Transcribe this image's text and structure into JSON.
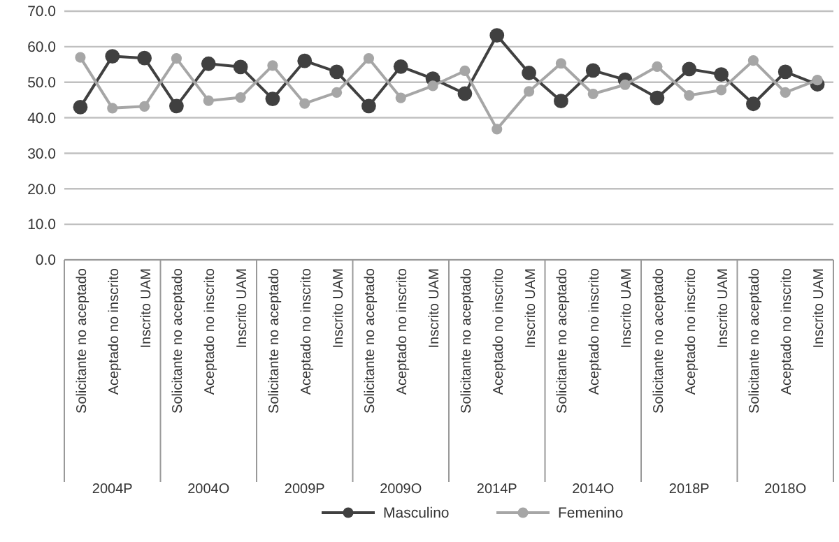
{
  "chart_data": {
    "type": "line",
    "categories": [
      "Solicitante no aceptado",
      "Aceptado no inscrito",
      "Inscrito UAM",
      "Solicitante no aceptado",
      "Aceptado no inscrito",
      "Inscrito UAM",
      "Solicitante no aceptado",
      "Aceptado no inscrito",
      "Inscrito UAM",
      "Solicitante no aceptado",
      "Aceptado no inscrito",
      "Inscrito UAM",
      "Solicitante no aceptado",
      "Aceptado no inscrito",
      "Inscrito UAM",
      "Solicitante no aceptado",
      "Aceptado no inscrito",
      "Inscrito UAM",
      "Solicitante no aceptado",
      "Aceptado no inscrito",
      "Inscrito UAM",
      "Solicitante no aceptado",
      "Aceptado no inscrito",
      "Inscrito UAM"
    ],
    "annotations": [
      "2004P",
      "2004O",
      "2009P",
      "2009O",
      "2014P",
      "2014O",
      "2018P",
      "2018O"
    ],
    "series": [
      {
        "name": "Masculino",
        "color": "#404040",
        "values": [
          43,
          57.3,
          56.8,
          43.3,
          55.2,
          54.3,
          45.3,
          56,
          52.9,
          43.3,
          54.4,
          51,
          46.8,
          63.2,
          52.6,
          44.7,
          53.3,
          50.7,
          45.6,
          53.7,
          52.2,
          43.9,
          52.9,
          49.4
        ]
      },
      {
        "name": "Femenino",
        "color": "#a6a6a6",
        "values": [
          57,
          42.7,
          43.2,
          56.7,
          44.8,
          45.7,
          54.7,
          44,
          47.1,
          56.7,
          45.6,
          49,
          53.2,
          36.8,
          47.4,
          55.3,
          46.7,
          49.3,
          54.4,
          46.3,
          47.8,
          56.1,
          47.1,
          50.6
        ]
      }
    ],
    "ylim": [
      0,
      70
    ],
    "yticks": [
      {
        "value": 0,
        "label": "0.0"
      },
      {
        "value": 10,
        "label": "10.0"
      },
      {
        "value": 20,
        "label": "20.0"
      },
      {
        "value": 30,
        "label": "30.0"
      },
      {
        "value": 40,
        "label": "40.0"
      },
      {
        "value": 50,
        "label": "50.0"
      },
      {
        "value": 60,
        "label": "60.0"
      },
      {
        "value": 70,
        "label": "70.0"
      }
    ],
    "grid": "y",
    "legend": "bottom",
    "marker": "circle",
    "line_style": "solid"
  }
}
